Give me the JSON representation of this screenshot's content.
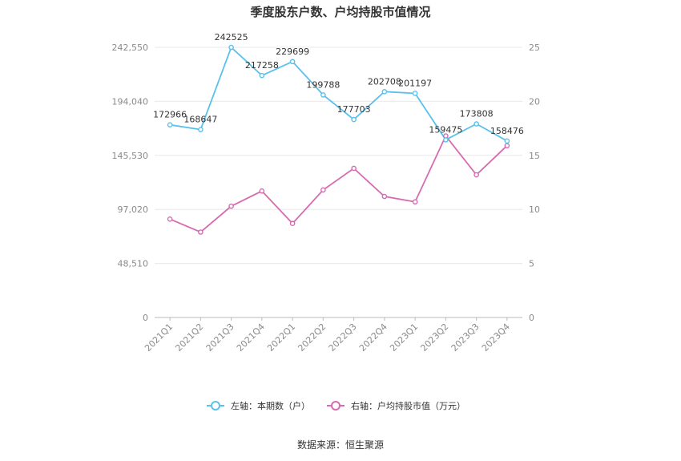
{
  "title": "季度股东户数、户均持股市值情况",
  "source": "数据来源：恒生聚源",
  "colors": {
    "left_series": "#5bc0eb",
    "right_series": "#d66bb0",
    "grid": "#e8e8e8",
    "axis_text": "#8a8a8a"
  },
  "chart_data": {
    "type": "line",
    "categories": [
      "2021Q1",
      "2021Q2",
      "2021Q3",
      "2021Q4",
      "2022Q1",
      "2022Q2",
      "2022Q3",
      "2022Q4",
      "2023Q1",
      "2023Q2",
      "2023Q3",
      "2023Q4"
    ],
    "series": [
      {
        "name": "左轴：本期数（户）",
        "axis": "left",
        "values": [
          172966,
          168647,
          242525,
          217258,
          229699,
          199788,
          177703,
          202708,
          201197,
          159475,
          173808,
          158476
        ],
        "labels": [
          "172966",
          "168647",
          "242525",
          "217258",
          "229699",
          "199788",
          "177703",
          "202708",
          "201197",
          "159475",
          "173808",
          "158476"
        ]
      },
      {
        "name": "右轴：户均持股市值（万元）",
        "axis": "right",
        "values": [
          9.1,
          7.9,
          10.3,
          11.7,
          8.7,
          11.8,
          13.8,
          11.2,
          10.7,
          16.8,
          13.2,
          15.9
        ]
      }
    ],
    "left_axis": {
      "ylim": [
        0,
        242550
      ],
      "ticks": [
        "0",
        "48,510",
        "97,020",
        "145,530",
        "194,040",
        "242,550"
      ]
    },
    "right_axis": {
      "ylim": [
        0,
        25
      ],
      "ticks": [
        "0",
        "5",
        "10",
        "15",
        "20",
        "25"
      ]
    },
    "grid": true,
    "legend_position": "bottom"
  }
}
